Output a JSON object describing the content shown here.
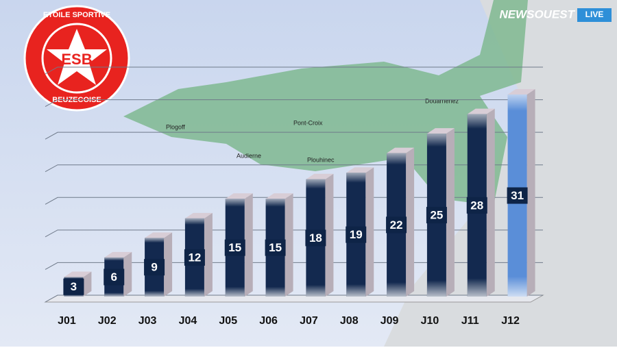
{
  "chart_data": {
    "type": "bar",
    "categories": [
      "J01",
      "J02",
      "J03",
      "J04",
      "J05",
      "J06",
      "J07",
      "J08",
      "J09",
      "J10",
      "J11",
      "J12"
    ],
    "values": [
      3,
      6,
      9,
      12,
      15,
      15,
      18,
      19,
      22,
      25,
      28,
      31
    ],
    "colors": [
      "#13294f",
      "#13294f",
      "#13294f",
      "#13294f",
      "#13294f",
      "#13294f",
      "#13294f",
      "#13294f",
      "#13294f",
      "#13294f",
      "#13294f",
      "#5a8ed8"
    ],
    "ylim": [
      0,
      35
    ],
    "yticks": [
      0,
      5,
      10,
      15,
      20,
      25,
      30,
      35
    ],
    "grid": true
  },
  "logo": {
    "top": "ETOILE SPORTIVE",
    "center": "ESB",
    "bottom": "BEUZECOISE"
  },
  "brand": {
    "name": "NEWSOUEST",
    "tag": "LIVE"
  },
  "map_labels": [
    "Douarnenez",
    "Pont-Croix",
    "Audierne",
    "Plouhinec",
    "Plogoff"
  ]
}
